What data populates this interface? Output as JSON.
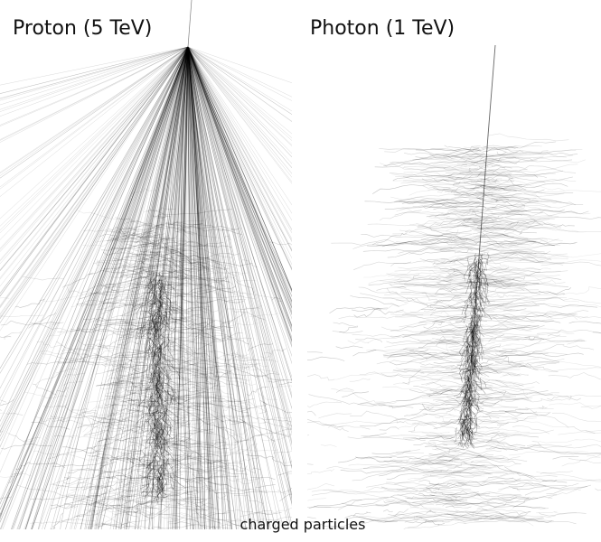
{
  "panels": [
    {
      "title": "Proton (5 TeV)"
    },
    {
      "title": "Photon (1 TeV)"
    }
  ],
  "caption": "charged particles"
}
